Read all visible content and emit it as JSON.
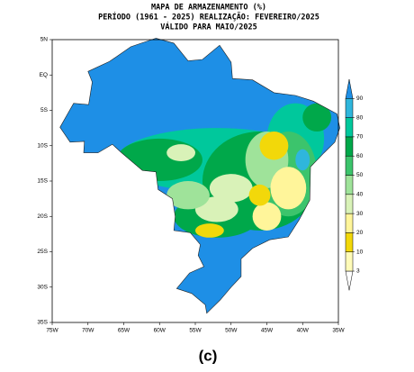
{
  "header": {
    "lines": [
      "MAPA DE ARMAZENAMENTO (%)",
      "PERÍODO (1961 - 2025) REALIZAÇÃO: FEVEREIRO/2025",
      "VÁLIDO PARA MAIO/2025"
    ]
  },
  "map": {
    "xlim": [
      -75,
      -35
    ],
    "ylim": [
      -35,
      5
    ],
    "xticks": [
      {
        "value": -75,
        "label": "75W"
      },
      {
        "value": -70,
        "label": "70W"
      },
      {
        "value": -65,
        "label": "65W"
      },
      {
        "value": -60,
        "label": "60W"
      },
      {
        "value": -55,
        "label": "55W"
      },
      {
        "value": -50,
        "label": "50W"
      },
      {
        "value": -45,
        "label": "45W"
      },
      {
        "value": -40,
        "label": "40W"
      },
      {
        "value": -35,
        "label": "35W"
      }
    ],
    "yticks": [
      {
        "value": 5,
        "label": "5N"
      },
      {
        "value": 0,
        "label": "EQ"
      },
      {
        "value": -5,
        "label": "5S"
      },
      {
        "value": -10,
        "label": "10S"
      },
      {
        "value": -15,
        "label": "15S"
      },
      {
        "value": -20,
        "label": "20S"
      },
      {
        "value": -25,
        "label": "25S"
      },
      {
        "value": -30,
        "label": "30S"
      },
      {
        "value": -35,
        "label": "35S"
      }
    ]
  },
  "colorbar": {
    "ticks": [
      3,
      10,
      20,
      30,
      40,
      50,
      60,
      70,
      80,
      90
    ],
    "colors": [
      "#ffffff",
      "#fffbb8",
      "#f2d80a",
      "#fff59a",
      "#d9f2b8",
      "#9fe39a",
      "#3cc46c",
      "#00a84a",
      "#00c89c",
      "#2fb6dc",
      "#1e8fe6"
    ]
  },
  "caption": "(c)"
}
